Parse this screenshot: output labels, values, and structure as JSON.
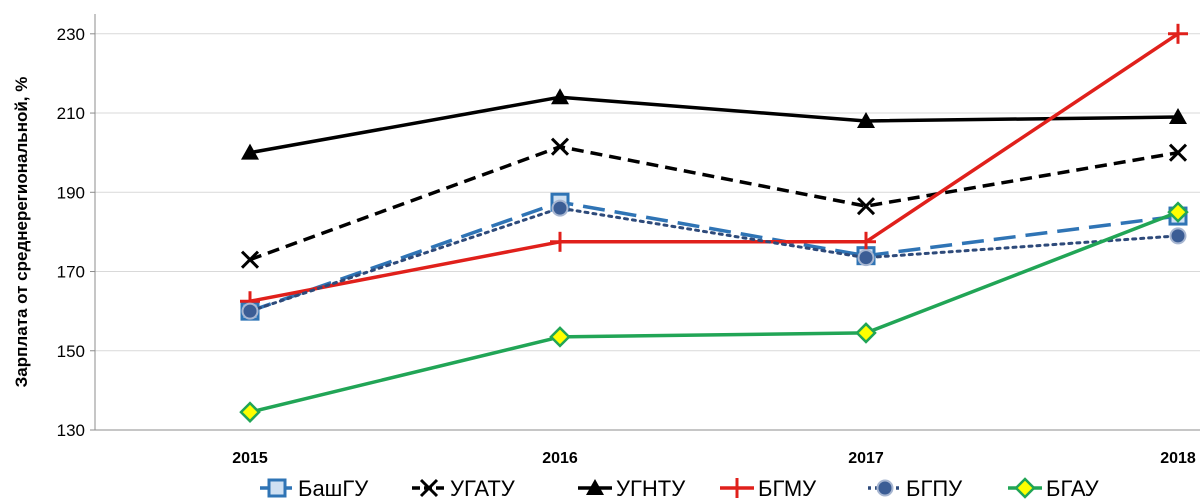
{
  "chart_data": {
    "type": "line",
    "title": "",
    "xlabel": "",
    "ylabel": "Зарплата от среднерегиональной, %",
    "categories": [
      "2015",
      "2016",
      "2017",
      "2018"
    ],
    "ylim": [
      130,
      235
    ],
    "yticks": [
      130,
      150,
      170,
      190,
      210,
      230
    ],
    "grid": true,
    "legend_position": "bottom",
    "series": [
      {
        "name": "БашГУ",
        "values": [
          160,
          187.5,
          174,
          184
        ],
        "color": "#2f74b5",
        "marker": "square",
        "dash": "long-dash"
      },
      {
        "name": "УГАТУ",
        "values": [
          173,
          201.5,
          186.5,
          200
        ],
        "color": "#000000",
        "marker": "x",
        "dash": "dash"
      },
      {
        "name": "УГНТУ",
        "values": [
          200,
          214,
          208,
          209
        ],
        "color": "#000000",
        "marker": "triangle",
        "dash": "solid"
      },
      {
        "name": "БГМУ",
        "values": [
          162.5,
          177.5,
          177.5,
          230
        ],
        "color": "#e0201b",
        "marker": "plus",
        "dash": "solid"
      },
      {
        "name": "БГПУ",
        "values": [
          160,
          186,
          173.5,
          179
        ],
        "color": "#2e4a7a",
        "marker": "circle",
        "dash": "dot"
      },
      {
        "name": "БГАУ",
        "values": [
          134.5,
          153.5,
          154.5,
          185
        ],
        "color": "#21a556",
        "marker": "diamond",
        "dash": "solid"
      }
    ]
  }
}
